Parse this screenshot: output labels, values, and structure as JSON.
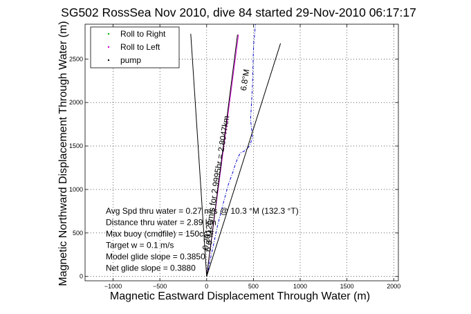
{
  "chart_data": {
    "type": "line",
    "title": "SG502 RossSea Nov 2010, dive 84 started 29-Nov-2010 06:17:17",
    "xlabel": "Magnetic Eastward Displacement Through Water (m)",
    "ylabel": "Magnetic Northward Displacement Through Water (m)",
    "xlim": [
      -1300,
      2050
    ],
    "ylim": [
      -50,
      2900
    ],
    "xticks": [
      -1000,
      -500,
      0,
      500,
      1000,
      1500,
      2000
    ],
    "xtick_labels": [
      "−1000",
      "−500",
      "0",
      "500",
      "1000",
      "1500",
      "2000"
    ],
    "yticks": [
      0,
      500,
      1000,
      1500,
      2000,
      2500
    ],
    "ytick_labels": [
      "0",
      "500",
      "1000",
      "1500",
      "2000",
      "2500"
    ],
    "grid": true,
    "legend": {
      "placement": "top-left",
      "entries": [
        {
          "label": "Roll to Right",
          "color": "#00b000",
          "marker": "dot"
        },
        {
          "label": "Roll to Left",
          "color": "#d000d0",
          "marker": "dot"
        },
        {
          "label": "pump",
          "color": "#000000",
          "marker": "dot"
        }
      ]
    },
    "series": [
      {
        "color": "#0000cc",
        "style": "dashdot",
        "x": [
          0,
          60,
          120,
          180,
          230,
          280,
          310,
          340,
          360,
          400,
          460,
          490,
          470,
          480,
          490,
          495,
          500,
          505,
          515,
          520
        ],
        "y": [
          0,
          300,
          600,
          850,
          1050,
          1200,
          1300,
          1380,
          1420,
          1440,
          1500,
          1600,
          1800,
          2000,
          2200,
          2400,
          2600,
          2700,
          2800,
          2900
        ]
      },
      {
        "color": "#d000d0",
        "style": "solid",
        "x": [
          0,
          340
        ],
        "y": [
          0,
          2780
        ]
      },
      {
        "color": "#000000",
        "style": "solid",
        "x": [
          0,
          -170
        ],
        "y": [
          0,
          2790
        ]
      },
      {
        "color": "#000000",
        "style": "solid",
        "x": [
          0,
          790
        ],
        "y": [
          0,
          2680
        ]
      },
      {
        "color": "#000000",
        "style": "solid",
        "x": [
          0,
          330
        ],
        "y": [
          0,
          2780
        ]
      }
    ],
    "line_annotations": [
      {
        "text": "0.2912cm/s for 2.9995hr = 2.8047km",
        "color": "#000000",
        "anchor_x": 15,
        "anchor_y": 300
      },
      {
        "text": "6.8°M",
        "color": "#000000",
        "anchor_x": 40,
        "anchor_y": 280
      },
      {
        "text": "6.8°M",
        "color": "#000000",
        "anchor_x": 420,
        "anchor_y": 2130
      }
    ],
    "annotations": [
      "Avg Spd thru water = 0.27 m/s @  10.3   °M (132.3 °T)",
      "Distance thru water = 2.89 km",
      "Max buoy (cmdfile) = 150cc",
      "Target w = 0.1 m/s",
      "Model glide slope = 0.3850",
      "Net glide slope = 0.3880"
    ]
  }
}
